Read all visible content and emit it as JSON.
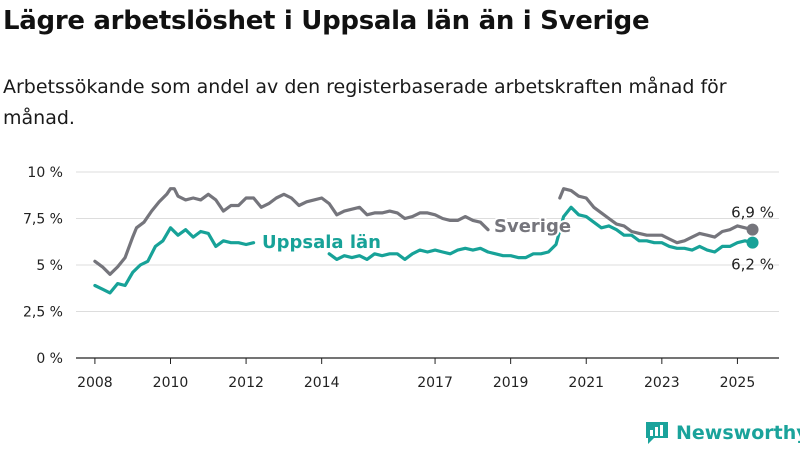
{
  "title": "Lägre arbetslöshet i Uppsala län än i Sverige",
  "subtitle": "Arbetssökande som andel av den registerbaserade arbetskraften månad för månad.",
  "brand": {
    "name": "Newsworthy",
    "icon": "newsworthy-logo-icon"
  },
  "colors": {
    "sverige": "#75757c",
    "uppsala": "#17a298",
    "grid": "#dddddd",
    "axis": "#222222"
  },
  "chart_data": {
    "type": "line",
    "title": "Lägre arbetslöshet i Uppsala län än i Sverige",
    "xlabel": "",
    "ylabel": "",
    "xlim": [
      2007.5,
      2026.1
    ],
    "ylim": [
      0,
      10
    ],
    "yticks": [
      {
        "value": 0,
        "label": "0 %"
      },
      {
        "value": 2.5,
        "label": "2,5 %"
      },
      {
        "value": 5,
        "label": "5 %"
      },
      {
        "value": 7.5,
        "label": "7,5 %"
      },
      {
        "value": 10,
        "label": "10 %"
      }
    ],
    "xticks": [
      {
        "value": 2008,
        "label": "2008"
      },
      {
        "value": 2010,
        "label": "2010"
      },
      {
        "value": 2012,
        "label": "2012"
      },
      {
        "value": 2014,
        "label": "2014"
      },
      {
        "value": 2017,
        "label": "2017"
      },
      {
        "value": 2019,
        "label": "2019"
      },
      {
        "value": 2021,
        "label": "2021"
      },
      {
        "value": 2023,
        "label": "2023"
      },
      {
        "value": 2025,
        "label": "2025"
      }
    ],
    "grid": true,
    "legend": "inline labels",
    "series": [
      {
        "name": "Sverige",
        "color": "#75757c",
        "end_label": "6,9 %",
        "x": [
          2008.0,
          2008.2,
          2008.4,
          2008.6,
          2008.8,
          2009.0,
          2009.1,
          2009.3,
          2009.5,
          2009.7,
          2009.9,
          2010.0,
          2010.1,
          2010.2,
          2010.4,
          2010.6,
          2010.8,
          2011.0,
          2011.2,
          2011.4,
          2011.6,
          2011.8,
          2012.0,
          2012.2,
          2012.4,
          2012.6,
          2012.8,
          2013.0,
          2013.2,
          2013.4,
          2013.6,
          2013.8,
          2014.0,
          2014.2,
          2014.4,
          2014.6,
          2014.8,
          2015.0,
          2015.2,
          2015.4,
          2015.6,
          2015.8,
          2016.0,
          2016.2,
          2016.4,
          2016.6,
          2016.8,
          2017.0,
          2017.2,
          2017.4,
          2017.6,
          2017.8,
          2018.0,
          2018.2,
          2018.4,
          2020.3,
          2020.4,
          2020.6,
          2020.8,
          2021.0,
          2021.2,
          2021.4,
          2021.6,
          2021.8,
          2022.0,
          2022.2,
          2022.4,
          2022.6,
          2022.8,
          2023.0,
          2023.2,
          2023.4,
          2023.6,
          2023.8,
          2024.0,
          2024.2,
          2024.4,
          2024.6,
          2024.8,
          2025.0,
          2025.2,
          2025.4
        ],
        "y": [
          5.2,
          4.9,
          4.5,
          4.9,
          5.4,
          6.5,
          7.0,
          7.3,
          7.9,
          8.4,
          8.8,
          9.1,
          9.1,
          8.7,
          8.5,
          8.6,
          8.5,
          8.8,
          8.5,
          7.9,
          8.2,
          8.2,
          8.6,
          8.6,
          8.1,
          8.3,
          8.6,
          8.8,
          8.6,
          8.2,
          8.4,
          8.5,
          8.6,
          8.3,
          7.7,
          7.9,
          8.0,
          8.1,
          7.7,
          7.8,
          7.8,
          7.9,
          7.8,
          7.5,
          7.6,
          7.8,
          7.8,
          7.7,
          7.5,
          7.4,
          7.4,
          7.6,
          7.4,
          7.3,
          6.9,
          8.6,
          9.1,
          9.0,
          8.7,
          8.6,
          8.1,
          7.8,
          7.5,
          7.2,
          7.1,
          6.8,
          6.7,
          6.6,
          6.6,
          6.6,
          6.4,
          6.2,
          6.3,
          6.5,
          6.7,
          6.6,
          6.5,
          6.8,
          6.9,
          7.1,
          7.0,
          6.9
        ]
      },
      {
        "name": "Uppsala län",
        "color": "#17a298",
        "end_label": "6,2 %",
        "x": [
          2008.0,
          2008.2,
          2008.4,
          2008.6,
          2008.8,
          2009.0,
          2009.2,
          2009.4,
          2009.6,
          2009.8,
          2010.0,
          2010.2,
          2010.4,
          2010.6,
          2010.8,
          2011.0,
          2011.2,
          2011.4,
          2011.6,
          2011.8,
          2012.0,
          2012.2,
          2014.2,
          2014.4,
          2014.6,
          2014.8,
          2015.0,
          2015.2,
          2015.4,
          2015.6,
          2015.8,
          2016.0,
          2016.2,
          2016.4,
          2016.6,
          2016.8,
          2017.0,
          2017.2,
          2017.4,
          2017.6,
          2017.8,
          2018.0,
          2018.2,
          2018.4,
          2018.6,
          2018.8,
          2019.0,
          2019.2,
          2019.4,
          2019.6,
          2019.8,
          2020.0,
          2020.2,
          2020.4,
          2020.6,
          2020.8,
          2021.0,
          2021.2,
          2021.4,
          2021.6,
          2021.8,
          2022.0,
          2022.2,
          2022.4,
          2022.6,
          2022.8,
          2023.0,
          2023.2,
          2023.4,
          2023.6,
          2023.8,
          2024.0,
          2024.2,
          2024.4,
          2024.6,
          2024.8,
          2025.0,
          2025.2,
          2025.4
        ],
        "y": [
          3.9,
          3.7,
          3.5,
          4.0,
          3.9,
          4.6,
          5.0,
          5.2,
          6.0,
          6.3,
          7.0,
          6.6,
          6.9,
          6.5,
          6.8,
          6.7,
          6.0,
          6.3,
          6.2,
          6.2,
          6.1,
          6.2,
          5.6,
          5.3,
          5.5,
          5.4,
          5.5,
          5.3,
          5.6,
          5.5,
          5.6,
          5.6,
          5.3,
          5.6,
          5.8,
          5.7,
          5.8,
          5.7,
          5.6,
          5.8,
          5.9,
          5.8,
          5.9,
          5.7,
          5.6,
          5.5,
          5.5,
          5.4,
          5.4,
          5.6,
          5.6,
          5.7,
          6.1,
          7.6,
          8.1,
          7.7,
          7.6,
          7.3,
          7.0,
          7.1,
          6.9,
          6.6,
          6.6,
          6.3,
          6.3,
          6.2,
          6.2,
          6.0,
          5.9,
          5.9,
          5.8,
          6.0,
          5.8,
          5.7,
          6.0,
          6.0,
          6.2,
          6.3,
          6.2
        ]
      }
    ]
  }
}
